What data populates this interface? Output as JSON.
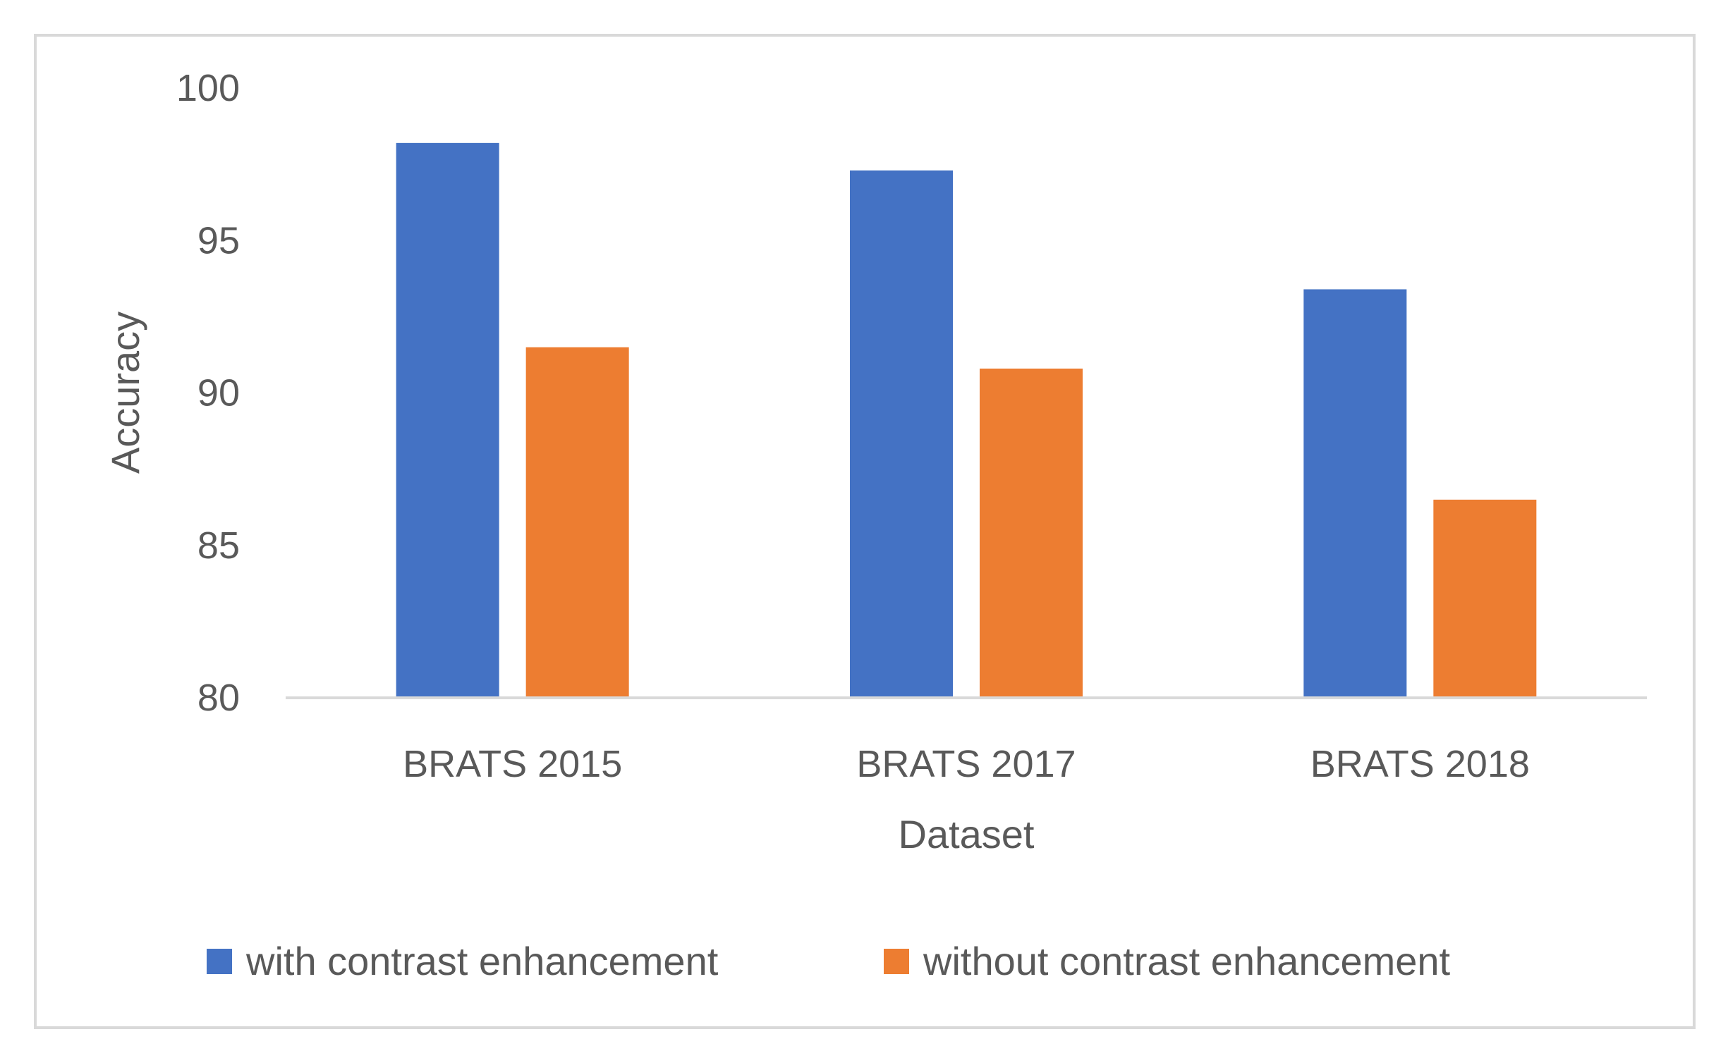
{
  "chart_data": {
    "type": "bar",
    "title": "",
    "xlabel": "Dataset",
    "ylabel": "Accuracy",
    "categories": [
      "BRATS 2015",
      "BRATS 2017",
      "BRATS 2018"
    ],
    "series": [
      {
        "name": "with contrast enhancement",
        "values": [
          98.2,
          97.3,
          93.4
        ],
        "color": "#4472c4"
      },
      {
        "name": "without contrast enhancement",
        "values": [
          91.5,
          90.8,
          86.5
        ],
        "color": "#ed7d31"
      }
    ],
    "ylim": [
      80,
      100
    ],
    "yticks": [
      80,
      85,
      90,
      95,
      100
    ],
    "grid": false,
    "legend": "bottom",
    "axis_color": "#d9d9d9",
    "text_color": "#595959"
  }
}
